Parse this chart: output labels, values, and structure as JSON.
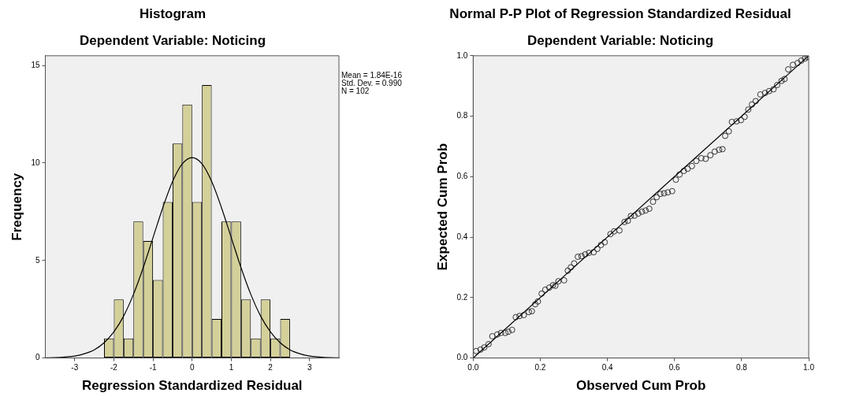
{
  "chart_data": [
    {
      "type": "histogram",
      "title": "Histogram",
      "subtitle": "Dependent Variable: Noticing",
      "xlabel": "Regression Standardized Residual",
      "ylabel": "Frequency",
      "bins": [
        -2.25,
        -2,
        -1.75,
        -1.5,
        -1.25,
        -1,
        -0.75,
        -0.5,
        -0.25,
        0,
        0.25,
        0.5,
        0.75,
        1,
        1.25,
        1.5,
        1.75,
        2,
        2.25,
        2.5
      ],
      "values": [
        1,
        3,
        1,
        7,
        6,
        4,
        8,
        11,
        13,
        8,
        14,
        2,
        7,
        7,
        3,
        1,
        3,
        1,
        2
      ],
      "color": "#d4d09a",
      "series": [
        {
          "type": "line",
          "color": "#000000",
          "x": [
            -3.75,
            -3.5,
            -3.25,
            -3,
            -2.75,
            -2.5,
            -2.25,
            -2,
            -1.75,
            -1.5,
            -1.25,
            -1,
            -0.75,
            -0.5,
            -0.25,
            0,
            0.25,
            0.5,
            0.75,
            1,
            1.25,
            1.5,
            1.75,
            2,
            2.25,
            2.5,
            2.75,
            3,
            3.25,
            3.5,
            3.75
          ],
          "values": [
            0.01,
            0.02,
            0.05,
            0.1,
            0.22,
            0.42,
            0.78,
            1.34,
            2.15,
            3.26,
            4.63,
            6.17,
            7.71,
            9.05,
            9.96,
            10.28,
            9.96,
            9.05,
            7.71,
            6.17,
            4.63,
            3.26,
            2.15,
            1.34,
            0.78,
            0.42,
            0.22,
            0.1,
            0.05,
            0.02,
            0.01
          ]
        }
      ],
      "xlim": [
        -3.75,
        3.75
      ],
      "xticks": [
        -3,
        -2,
        -1,
        0,
        1,
        2,
        3
      ],
      "ylim": [
        0,
        15.5
      ],
      "yticks": [
        0,
        5,
        10,
        15
      ],
      "marker": "none",
      "annotations": [
        "Mean = 1.84E-16",
        "Std. Dev. = 0.990",
        "N = 102"
      ]
    },
    {
      "type": "scatter",
      "title": "Normal P-P Plot of Regression Standardized Residual",
      "subtitle": "Dependent Variable: Noticing",
      "xlabel": "Observed Cum Prob",
      "ylabel": "Expected Cum Prob",
      "series": [
        {
          "type": "scatter",
          "color": "#333333",
          "x": [
            0.009,
            0.022,
            0.033,
            0.046,
            0.057,
            0.072,
            0.083,
            0.096,
            0.105,
            0.116,
            0.127,
            0.138,
            0.151,
            0.166,
            0.175,
            0.185,
            0.193,
            0.204,
            0.215,
            0.227,
            0.238,
            0.245,
            0.254,
            0.271,
            0.282,
            0.291,
            0.301,
            0.312,
            0.323,
            0.334,
            0.345,
            0.359,
            0.37,
            0.381,
            0.392,
            0.409,
            0.42,
            0.436,
            0.451,
            0.461,
            0.47,
            0.481,
            0.492,
            0.503,
            0.514,
            0.525,
            0.536,
            0.547,
            0.558,
            0.569,
            0.58,
            0.593,
            0.604,
            0.615,
            0.628,
            0.639,
            0.652,
            0.665,
            0.68,
            0.693,
            0.707,
            0.72,
            0.733,
            0.743,
            0.751,
            0.762,
            0.771,
            0.785,
            0.798,
            0.809,
            0.82,
            0.831,
            0.842,
            0.856,
            0.87,
            0.882,
            0.895,
            0.906,
            0.919,
            0.928,
            0.939,
            0.953,
            0.967,
            0.978,
            0.989,
            0.997
          ],
          "values": [
            0.023,
            0.028,
            0.035,
            0.046,
            0.072,
            0.078,
            0.083,
            0.083,
            0.087,
            0.093,
            0.135,
            0.139,
            0.142,
            0.152,
            0.155,
            0.178,
            0.187,
            0.213,
            0.226,
            0.233,
            0.241,
            0.239,
            0.254,
            0.257,
            0.289,
            0.3,
            0.313,
            0.335,
            0.337,
            0.343,
            0.348,
            0.35,
            0.361,
            0.374,
            0.383,
            0.41,
            0.419,
            0.422,
            0.45,
            0.454,
            0.47,
            0.471,
            0.478,
            0.484,
            0.488,
            0.494,
            0.517,
            0.532,
            0.543,
            0.545,
            0.548,
            0.552,
            0.59,
            0.607,
            0.619,
            0.626,
            0.635,
            0.652,
            0.661,
            0.659,
            0.671,
            0.683,
            0.689,
            0.691,
            0.735,
            0.75,
            0.781,
            0.783,
            0.787,
            0.798,
            0.822,
            0.839,
            0.85,
            0.872,
            0.877,
            0.883,
            0.889,
            0.903,
            0.917,
            0.923,
            0.955,
            0.97,
            0.976,
            0.984,
            0.991,
            0.996
          ]
        },
        {
          "type": "line",
          "color": "#000000",
          "marker": "none",
          "x": [
            0,
            1
          ],
          "values": [
            0,
            1
          ]
        }
      ],
      "xlim": [
        0,
        1
      ],
      "xticks": [
        {
          "value": 0,
          "label": "0.0"
        },
        {
          "value": 0.2,
          "label": "0.2"
        },
        {
          "value": 0.4,
          "label": "0.4"
        },
        {
          "value": 0.6,
          "label": "0.6"
        },
        {
          "value": 0.8,
          "label": "0.8"
        },
        {
          "value": 1,
          "label": "1.0"
        }
      ],
      "ylim": [
        0,
        1
      ],
      "yticks": [
        {
          "value": 0,
          "label": "0.0"
        },
        {
          "value": 0.2,
          "label": "0.2"
        },
        {
          "value": 0.4,
          "label": "0.4"
        },
        {
          "value": 0.6,
          "label": "0.6"
        },
        {
          "value": 0.8,
          "label": "0.8"
        },
        {
          "value": 1,
          "label": "1.0"
        }
      ],
      "marker": "circle"
    }
  ]
}
